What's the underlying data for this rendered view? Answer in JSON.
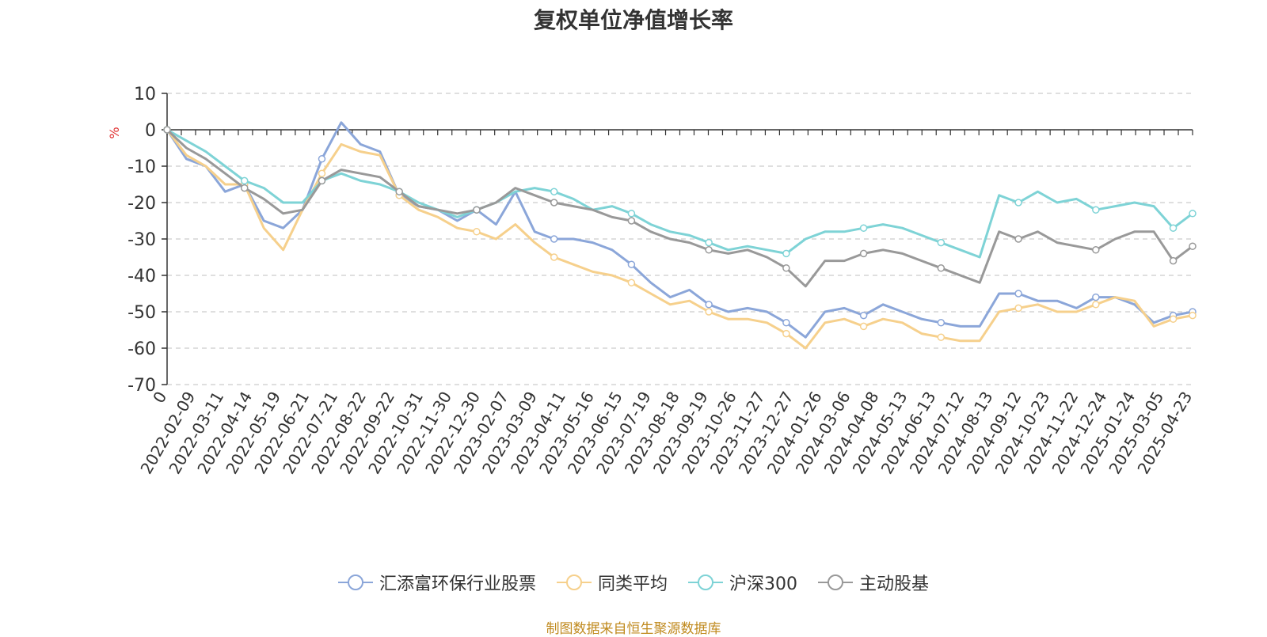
{
  "chart_data": {
    "type": "line",
    "title": "复权单位净值增长率",
    "ylabel": "%",
    "ylim": [
      -70,
      10
    ],
    "yticks": [
      10,
      0,
      -10,
      -20,
      -30,
      -40,
      -50,
      -60,
      -70
    ],
    "xticks": [
      "0",
      "2022-02-09",
      "2022-03-11",
      "2022-04-14",
      "2022-05-19",
      "2022-06-21",
      "2022-07-21",
      "2022-08-22",
      "2022-09-22",
      "2022-10-31",
      "2022-11-30",
      "2022-12-30",
      "2023-02-07",
      "2023-03-09",
      "2023-04-11",
      "2023-05-16",
      "2023-06-15",
      "2023-07-19",
      "2023-08-18",
      "2023-09-19",
      "2023-10-26",
      "2023-11-27",
      "2023-12-27",
      "2024-01-26",
      "2024-03-06",
      "2024-04-08",
      "2024-05-13",
      "2024-06-13",
      "2024-07-12",
      "2024-08-13",
      "2024-09-12",
      "2024-10-23",
      "2024-11-22",
      "2024-12-24",
      "2025-01-24",
      "2025-03-05",
      "2025-04-23"
    ],
    "grid": true,
    "legend_position": "bottom",
    "series": [
      {
        "name": "汇添富环保行业股票",
        "color": "#8ba6d9",
        "values": [
          0,
          -8,
          -10,
          -17,
          -15,
          -25,
          -27,
          -22,
          -8,
          2,
          -4,
          -6,
          -18,
          -21,
          -22,
          -25,
          -22,
          -26,
          -17,
          -28,
          -30,
          -30,
          -31,
          -33,
          -37,
          -42,
          -46,
          -44,
          -48,
          -50,
          -49,
          -50,
          -53,
          -57,
          -50,
          -49,
          -51,
          -48,
          -50,
          -52,
          -53,
          -54,
          -54,
          -45,
          -45,
          -47,
          -47,
          -49,
          -46,
          -46,
          -48,
          -53,
          -51,
          -50
        ]
      },
      {
        "name": "同类平均",
        "color": "#f6d08c",
        "values": [
          0,
          -7,
          -10,
          -15,
          -15,
          -27,
          -33,
          -22,
          -12,
          -4,
          -6,
          -7,
          -18,
          -22,
          -24,
          -27,
          -28,
          -30,
          -26,
          -31,
          -35,
          -37,
          -39,
          -40,
          -42,
          -45,
          -48,
          -47,
          -50,
          -52,
          -52,
          -53,
          -56,
          -60,
          -53,
          -52,
          -54,
          -52,
          -53,
          -56,
          -57,
          -58,
          -58,
          -50,
          -49,
          -48,
          -50,
          -50,
          -48,
          -46,
          -47,
          -54,
          -52,
          -51
        ]
      },
      {
        "name": "沪深300",
        "color": "#7ed3d6",
        "values": [
          0,
          -3,
          -6,
          -10,
          -14,
          -16,
          -20,
          -20,
          -14,
          -12,
          -14,
          -15,
          -17,
          -20,
          -22,
          -24,
          -22,
          -20,
          -17,
          -16,
          -17,
          -19,
          -22,
          -21,
          -23,
          -26,
          -28,
          -29,
          -31,
          -33,
          -32,
          -33,
          -34,
          -30,
          -28,
          -28,
          -27,
          -26,
          -27,
          -29,
          -31,
          -33,
          -35,
          -18,
          -20,
          -17,
          -20,
          -19,
          -22,
          -21,
          -20,
          -21,
          -27,
          -23
        ]
      },
      {
        "name": "主动股基",
        "color": "#999999",
        "values": [
          0,
          -5,
          -8,
          -12,
          -16,
          -19,
          -23,
          -22,
          -14,
          -11,
          -12,
          -13,
          -17,
          -21,
          -22,
          -23,
          -22,
          -20,
          -16,
          -18,
          -20,
          -21,
          -22,
          -24,
          -25,
          -28,
          -30,
          -31,
          -33,
          -34,
          -33,
          -35,
          -38,
          -43,
          -36,
          -36,
          -34,
          -33,
          -34,
          -36,
          -38,
          -40,
          -42,
          -28,
          -30,
          -28,
          -31,
          -32,
          -33,
          -30,
          -28,
          -28,
          -36,
          -32
        ]
      }
    ]
  },
  "source_note": "制图数据来自恒生聚源数据库"
}
